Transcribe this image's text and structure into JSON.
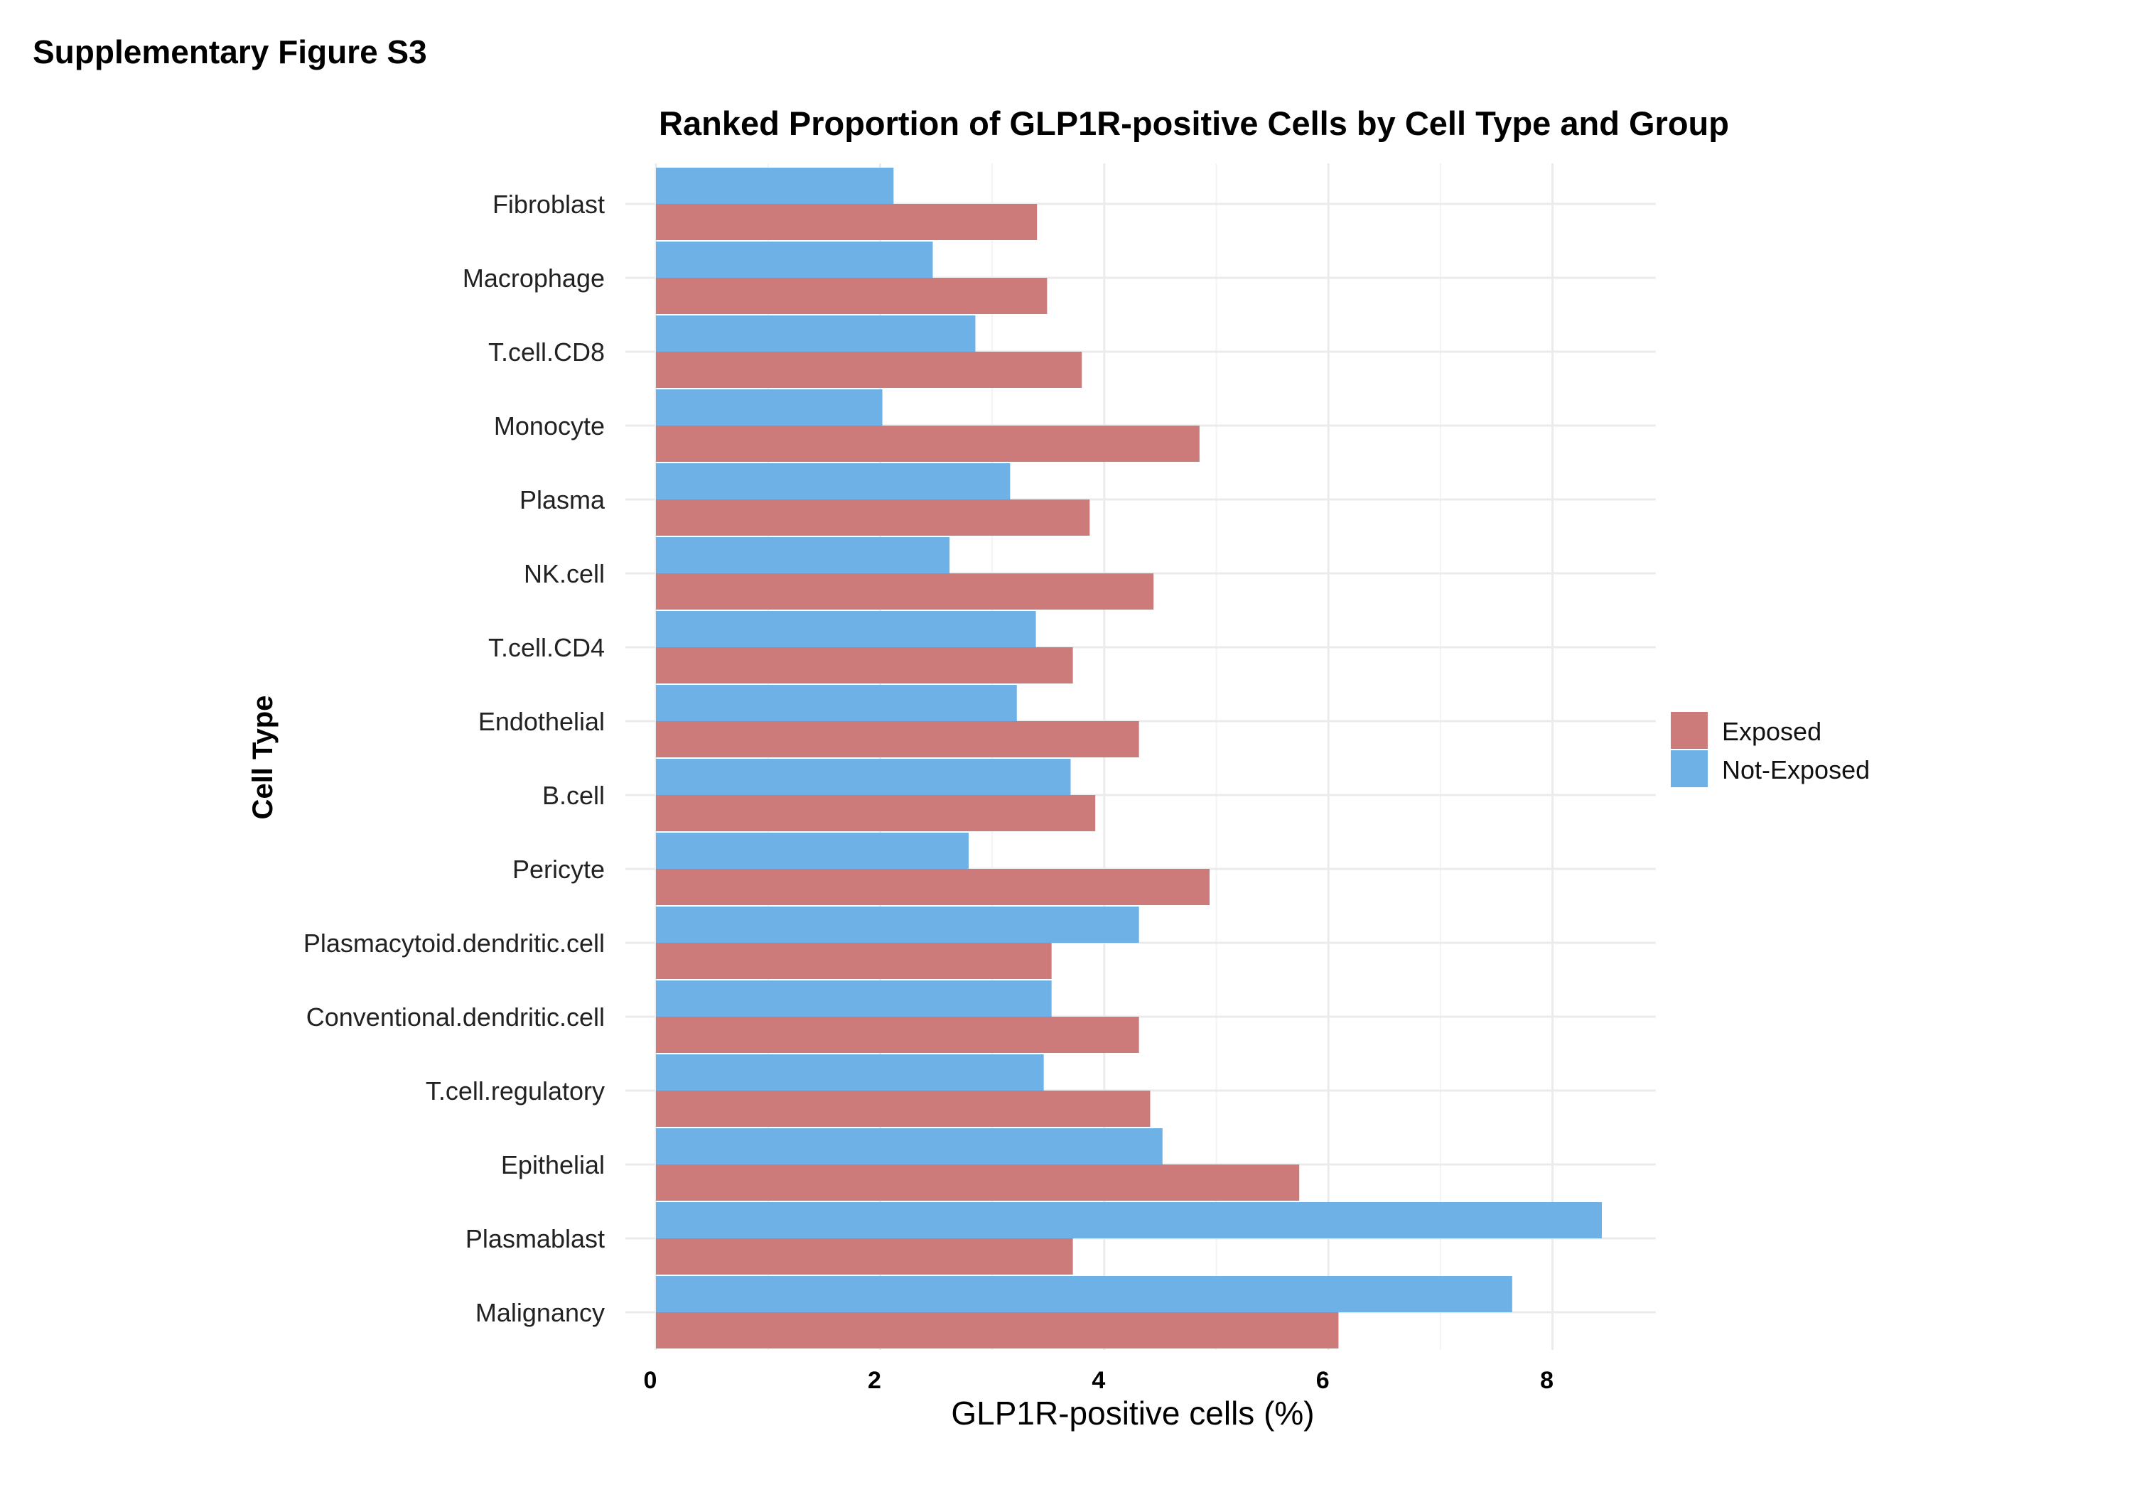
{
  "figure_label": "Supplementary Figure S3",
  "chart_data": {
    "type": "bar",
    "orientation": "horizontal",
    "title": "Ranked Proportion of GLP1R-positive Cells by Cell Type and Group",
    "xlabel": "GLP1R-positive cells (%)",
    "ylabel": "Cell Type",
    "xlim": [
      0,
      8.85
    ],
    "xticks": [
      0,
      2,
      4,
      6,
      8
    ],
    "grid": true,
    "legend_position": "right",
    "categories": [
      "Fibroblast",
      "Macrophage",
      "T.cell.CD8",
      "Monocyte",
      "Plasma",
      "NK.cell",
      "T.cell.CD4",
      "Endothelial",
      "B.cell",
      "Pericyte",
      "Plasmacytoid.dendritic.cell",
      "Conventional.dendritic.cell",
      "T.cell.regulatory",
      "Epithelial",
      "Plasmablast",
      "Malignancy"
    ],
    "series": [
      {
        "name": "Exposed",
        "color": "#CD7A7A",
        "values": [
          3.4,
          3.49,
          3.8,
          4.85,
          3.87,
          4.44,
          3.72,
          4.31,
          3.92,
          4.94,
          3.53,
          4.31,
          4.41,
          5.74,
          3.72,
          6.09
        ]
      },
      {
        "name": "Not-Exposed",
        "color": "#6DB1E7",
        "values": [
          2.12,
          2.47,
          2.85,
          2.02,
          3.16,
          2.62,
          3.39,
          3.22,
          3.7,
          2.79,
          4.31,
          3.53,
          3.46,
          4.52,
          8.44,
          7.64
        ]
      }
    ]
  }
}
